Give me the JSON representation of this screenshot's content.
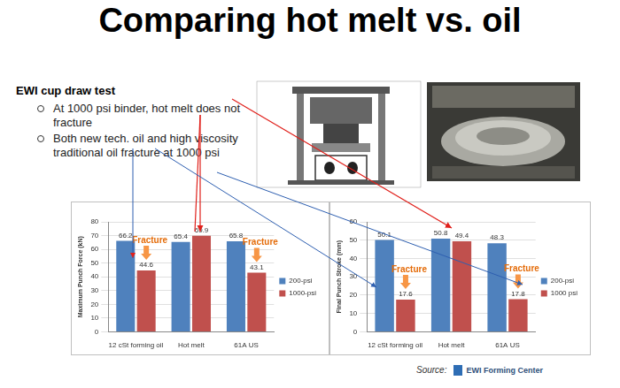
{
  "title": "Comparing hot melt vs. oil",
  "heading": "EWI cup draw test",
  "bullets": [
    "At 1000 psi binder, hot melt does not fracture",
    "Both new tech. oil and high viscosity traditional oil fracture at 1000 psi"
  ],
  "source": {
    "label": "Source:",
    "name": "EWI Forming Center"
  },
  "chart_data": [
    {
      "type": "bar",
      "y_label": "Maximum Punch Force (kN)",
      "categories": [
        "12 cSt forming oil",
        "Hot melt",
        "61A US"
      ],
      "series": [
        {
          "name": "200-psi",
          "color": "#4f81bd",
          "values": [
            66.2,
            65.4,
            65.8
          ]
        },
        {
          "name": "1000-psi",
          "color": "#c0504d",
          "values": [
            44.6,
            69.9,
            43.1
          ]
        }
      ],
      "ylim": [
        0,
        80
      ],
      "yticks": [
        0,
        10,
        20,
        30,
        40,
        50,
        60,
        70,
        80
      ],
      "grid": true,
      "legend": "right",
      "data_labels": true,
      "annotations": [
        {
          "text": "Fracture",
          "category": "12 cSt forming oil",
          "series": "1000-psi"
        },
        {
          "text": "Fracture",
          "category": "61A US",
          "series": "1000-psi"
        }
      ]
    },
    {
      "type": "bar",
      "y_label": "Final Punch Stroke (mm)",
      "categories": [
        "12 cSt forming oil",
        "Hot melt",
        "61A US"
      ],
      "series": [
        {
          "name": "200-psi",
          "color": "#4f81bd",
          "values": [
            50.1,
            50.8,
            48.3
          ]
        },
        {
          "name": "1000 psi",
          "color": "#c0504d",
          "values": [
            17.6,
            49.4,
            17.8
          ]
        }
      ],
      "ylim": [
        0,
        60
      ],
      "yticks": [
        0,
        10,
        20,
        30,
        40,
        50,
        60
      ],
      "grid": true,
      "legend": "right",
      "data_labels": true,
      "annotations": [
        {
          "text": "Fracture",
          "category": "12 cSt forming oil",
          "series": "1000 psi"
        },
        {
          "text": "Fracture",
          "category": "61A US",
          "series": "1000 psi"
        }
      ]
    }
  ]
}
